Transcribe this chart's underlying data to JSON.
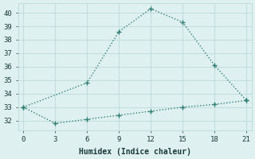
{
  "x_upper": [
    0,
    6,
    9,
    12,
    15,
    18,
    21
  ],
  "y_upper": [
    33.0,
    34.8,
    38.6,
    40.3,
    39.3,
    36.1,
    33.5
  ],
  "x_lower": [
    0,
    3,
    6,
    9,
    12,
    15,
    18,
    21
  ],
  "y_lower": [
    33.0,
    31.8,
    32.1,
    32.4,
    32.7,
    33.0,
    33.2,
    33.5
  ],
  "x_markers_upper": [
    6,
    9,
    12,
    15,
    18
  ],
  "y_markers_upper": [
    34.8,
    38.6,
    40.3,
    39.3,
    36.1
  ],
  "x_markers_lower": [
    3
  ],
  "y_markers_lower": [
    31.8
  ],
  "line_color": "#2d7d74",
  "bg_color": "#dff0f0",
  "grid_color": "#c0dede",
  "xlabel": "Humidex (Indice chaleur)",
  "xlim": [
    -0.5,
    21.5
  ],
  "ylim": [
    31.3,
    40.7
  ],
  "xticks": [
    0,
    3,
    6,
    9,
    12,
    15,
    18,
    21
  ],
  "yticks": [
    32,
    33,
    34,
    35,
    36,
    37,
    38,
    39,
    40
  ],
  "font_color": "#1a3a3a",
  "markersize": 4,
  "linewidth": 1.0
}
